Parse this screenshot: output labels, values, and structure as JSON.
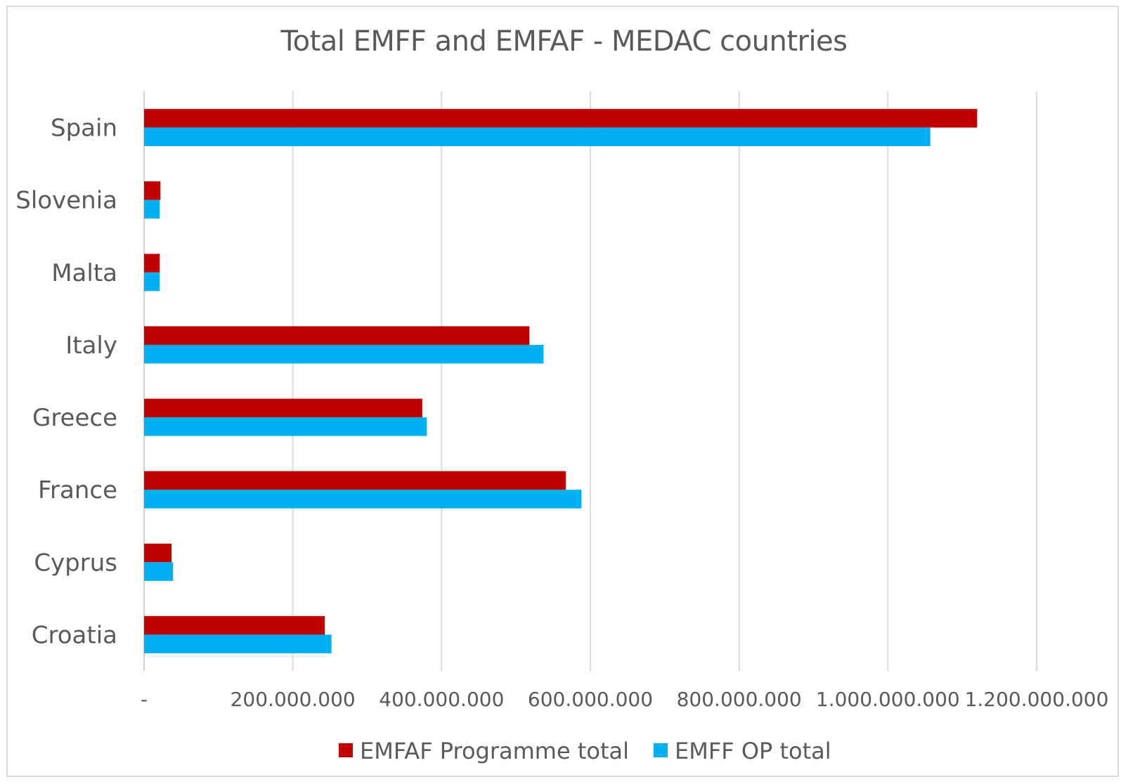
{
  "chart_data": {
    "type": "bar",
    "orientation": "horizontal",
    "title": "Total EMFF and EMFAF - MEDAC countries",
    "categories": [
      "Croatia",
      "Cyprus",
      "France",
      "Greece",
      "Italy",
      "Malta",
      "Slovenia",
      "Spain"
    ],
    "series": [
      {
        "name": "EMFAF Programme total",
        "color": "#c00000",
        "values": [
          243000000,
          37000000,
          567000000,
          374000000,
          518000000,
          21000000,
          22000000,
          1120000000
        ]
      },
      {
        "name": "EMFF OP total",
        "color": "#00b0f0",
        "values": [
          252000000,
          39000000,
          588000000,
          380000000,
          537000000,
          21000000,
          21000000,
          1057000000
        ]
      }
    ],
    "xlim": [
      0,
      1200000000
    ],
    "x_ticks": [
      0,
      200000000,
      400000000,
      600000000,
      800000000,
      1000000000,
      1200000000
    ],
    "x_tick_labels": [
      "-",
      "200.000.000",
      "400.000.000",
      "600.000.000",
      "800.000.000",
      "1.000.000.000",
      "1.200.000.000"
    ],
    "grid": true,
    "legend_position": "bottom"
  }
}
